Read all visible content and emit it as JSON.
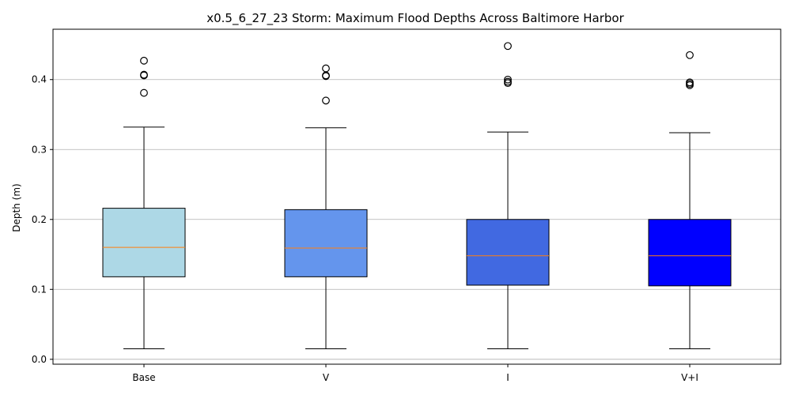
{
  "chart_data": {
    "type": "box",
    "title": "x0.5_6_27_23 Storm: Maximum Flood Depths Across Baltimore Harbor",
    "xlabel": "",
    "ylabel": "Depth (m)",
    "ylim": [
      -0.007,
      0.472
    ],
    "yticks": [
      0.0,
      0.1,
      0.2,
      0.3,
      0.4
    ],
    "ytick_labels": [
      "0.0",
      "0.1",
      "0.2",
      "0.3",
      "0.4"
    ],
    "grid": "y-major",
    "categories": [
      "Base",
      "V",
      "I",
      "V+I"
    ],
    "box_colors": [
      "#ADD8E6",
      "#6495ED",
      "#4169E1",
      "#0000FF"
    ],
    "median_color": "#FF7F0E",
    "boxes": [
      {
        "category": "Base",
        "whisker_low": 0.015,
        "q1": 0.118,
        "median": 0.16,
        "q3": 0.216,
        "whisker_high": 0.332,
        "outliers": [
          0.381,
          0.406,
          0.407,
          0.427
        ]
      },
      {
        "category": "V",
        "whisker_low": 0.015,
        "q1": 0.118,
        "median": 0.159,
        "q3": 0.214,
        "whisker_high": 0.331,
        "outliers": [
          0.37,
          0.405,
          0.406,
          0.416
        ]
      },
      {
        "category": "I",
        "whisker_low": 0.015,
        "q1": 0.106,
        "median": 0.148,
        "q3": 0.2,
        "whisker_high": 0.325,
        "outliers": [
          0.395,
          0.397,
          0.4,
          0.448
        ]
      },
      {
        "category": "V+I",
        "whisker_low": 0.015,
        "q1": 0.105,
        "median": 0.148,
        "q3": 0.2,
        "whisker_high": 0.324,
        "outliers": [
          0.392,
          0.394,
          0.396,
          0.435
        ]
      }
    ]
  }
}
